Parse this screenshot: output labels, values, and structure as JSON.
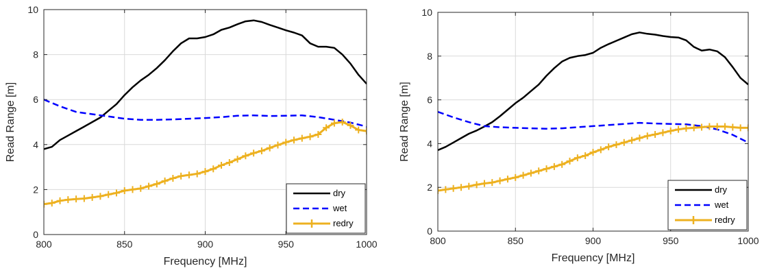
{
  "chart_data": [
    {
      "type": "line",
      "title": "",
      "xlabel": "Frequency [MHz]",
      "ylabel": "Read Range [m]",
      "xlim": [
        800,
        1000
      ],
      "ylim": [
        0,
        10
      ],
      "xticks": [
        "800",
        "850",
        "900",
        "950",
        "1000"
      ],
      "yticks": [
        "0",
        "2",
        "4",
        "6",
        "8",
        "10"
      ],
      "grid": true,
      "legend_position": "bottom-right",
      "series": [
        {
          "name": "dry",
          "color": "#000000",
          "style": "solid",
          "marker": "none",
          "x": [
            800,
            805,
            810,
            815,
            820,
            825,
            830,
            835,
            840,
            845,
            850,
            855,
            860,
            865,
            870,
            875,
            880,
            885,
            890,
            895,
            900,
            905,
            910,
            915,
            920,
            925,
            930,
            935,
            940,
            945,
            950,
            955,
            960,
            965,
            970,
            975,
            980,
            985,
            990,
            995,
            1000
          ],
          "y": [
            3.8,
            3.9,
            4.2,
            4.4,
            4.6,
            4.8,
            5.0,
            5.2,
            5.5,
            5.8,
            6.2,
            6.55,
            6.85,
            7.1,
            7.4,
            7.75,
            8.15,
            8.5,
            8.72,
            8.72,
            8.78,
            8.9,
            9.1,
            9.2,
            9.35,
            9.48,
            9.52,
            9.45,
            9.32,
            9.2,
            9.08,
            8.98,
            8.85,
            8.5,
            8.35,
            8.35,
            8.3,
            8.0,
            7.6,
            7.1,
            6.7
          ]
        },
        {
          "name": "wet",
          "color": "#0000ff",
          "style": "dashed",
          "marker": "none",
          "x": [
            800,
            810,
            820,
            830,
            840,
            850,
            860,
            870,
            880,
            890,
            900,
            910,
            920,
            930,
            940,
            950,
            960,
            970,
            980,
            990,
            1000
          ],
          "y": [
            6.0,
            5.7,
            5.45,
            5.35,
            5.25,
            5.15,
            5.1,
            5.1,
            5.12,
            5.15,
            5.18,
            5.22,
            5.28,
            5.3,
            5.27,
            5.28,
            5.3,
            5.22,
            5.1,
            4.98,
            4.8
          ]
        },
        {
          "name": "redry",
          "color": "#edb120",
          "style": "solid",
          "marker": "plus",
          "x": [
            800,
            805,
            810,
            815,
            820,
            825,
            830,
            835,
            840,
            845,
            850,
            855,
            860,
            865,
            870,
            875,
            880,
            885,
            890,
            895,
            900,
            905,
            910,
            915,
            920,
            925,
            930,
            935,
            940,
            945,
            950,
            955,
            960,
            965,
            970,
            975,
            980,
            985,
            990,
            995,
            1000
          ],
          "y": [
            1.35,
            1.4,
            1.5,
            1.55,
            1.58,
            1.6,
            1.65,
            1.7,
            1.78,
            1.85,
            1.95,
            2.0,
            2.05,
            2.15,
            2.25,
            2.38,
            2.5,
            2.6,
            2.65,
            2.7,
            2.8,
            2.92,
            3.08,
            3.2,
            3.35,
            3.5,
            3.62,
            3.72,
            3.85,
            3.98,
            4.1,
            4.2,
            4.28,
            4.35,
            4.45,
            4.75,
            4.95,
            5.0,
            4.85,
            4.65,
            4.6
          ]
        }
      ]
    },
    {
      "type": "line",
      "title": "",
      "xlabel": "Frequency [MHz]",
      "ylabel": "Read Range [m]",
      "xlim": [
        800,
        1000
      ],
      "ylim": [
        0,
        10
      ],
      "xticks": [
        "800",
        "850",
        "900",
        "950",
        "1000"
      ],
      "yticks": [
        "0",
        "2",
        "4",
        "6",
        "8",
        "10"
      ],
      "grid": true,
      "legend_position": "bottom-right",
      "series": [
        {
          "name": "dry",
          "color": "#000000",
          "style": "solid",
          "marker": "none",
          "x": [
            800,
            805,
            810,
            815,
            820,
            825,
            830,
            835,
            840,
            845,
            850,
            855,
            860,
            865,
            870,
            875,
            880,
            885,
            890,
            895,
            900,
            905,
            910,
            915,
            920,
            925,
            930,
            935,
            940,
            945,
            950,
            955,
            960,
            965,
            970,
            975,
            980,
            985,
            990,
            995,
            1000
          ],
          "y": [
            3.7,
            3.85,
            4.05,
            4.25,
            4.45,
            4.6,
            4.78,
            4.98,
            5.25,
            5.55,
            5.85,
            6.1,
            6.4,
            6.7,
            7.1,
            7.45,
            7.75,
            7.92,
            8.0,
            8.05,
            8.15,
            8.38,
            8.55,
            8.7,
            8.85,
            9.0,
            9.08,
            9.02,
            8.98,
            8.92,
            8.87,
            8.85,
            8.72,
            8.42,
            8.25,
            8.3,
            8.22,
            7.95,
            7.5,
            7.0,
            6.7
          ]
        },
        {
          "name": "wet",
          "color": "#0000ff",
          "style": "dashed",
          "marker": "none",
          "x": [
            800,
            810,
            820,
            830,
            840,
            850,
            860,
            870,
            880,
            890,
            900,
            910,
            920,
            930,
            940,
            950,
            960,
            970,
            980,
            990,
            1000
          ],
          "y": [
            5.45,
            5.2,
            4.98,
            4.8,
            4.75,
            4.72,
            4.7,
            4.68,
            4.7,
            4.75,
            4.8,
            4.85,
            4.9,
            4.95,
            4.92,
            4.9,
            4.88,
            4.8,
            4.65,
            4.4,
            4.05
          ]
        },
        {
          "name": "redry",
          "color": "#edb120",
          "style": "solid",
          "marker": "plus",
          "x": [
            800,
            805,
            810,
            815,
            820,
            825,
            830,
            835,
            840,
            845,
            850,
            855,
            860,
            865,
            870,
            875,
            880,
            885,
            890,
            895,
            900,
            905,
            910,
            915,
            920,
            925,
            930,
            935,
            940,
            945,
            950,
            955,
            960,
            965,
            970,
            975,
            980,
            985,
            990,
            995,
            1000
          ],
          "y": [
            1.85,
            1.9,
            1.95,
            2.0,
            2.05,
            2.12,
            2.18,
            2.22,
            2.3,
            2.38,
            2.45,
            2.55,
            2.65,
            2.75,
            2.85,
            2.95,
            3.05,
            3.2,
            3.35,
            3.45,
            3.6,
            3.72,
            3.85,
            3.95,
            4.05,
            4.15,
            4.25,
            4.35,
            4.42,
            4.5,
            4.58,
            4.65,
            4.7,
            4.72,
            4.75,
            4.78,
            4.78,
            4.78,
            4.75,
            4.72,
            4.72
          ]
        }
      ]
    }
  ]
}
